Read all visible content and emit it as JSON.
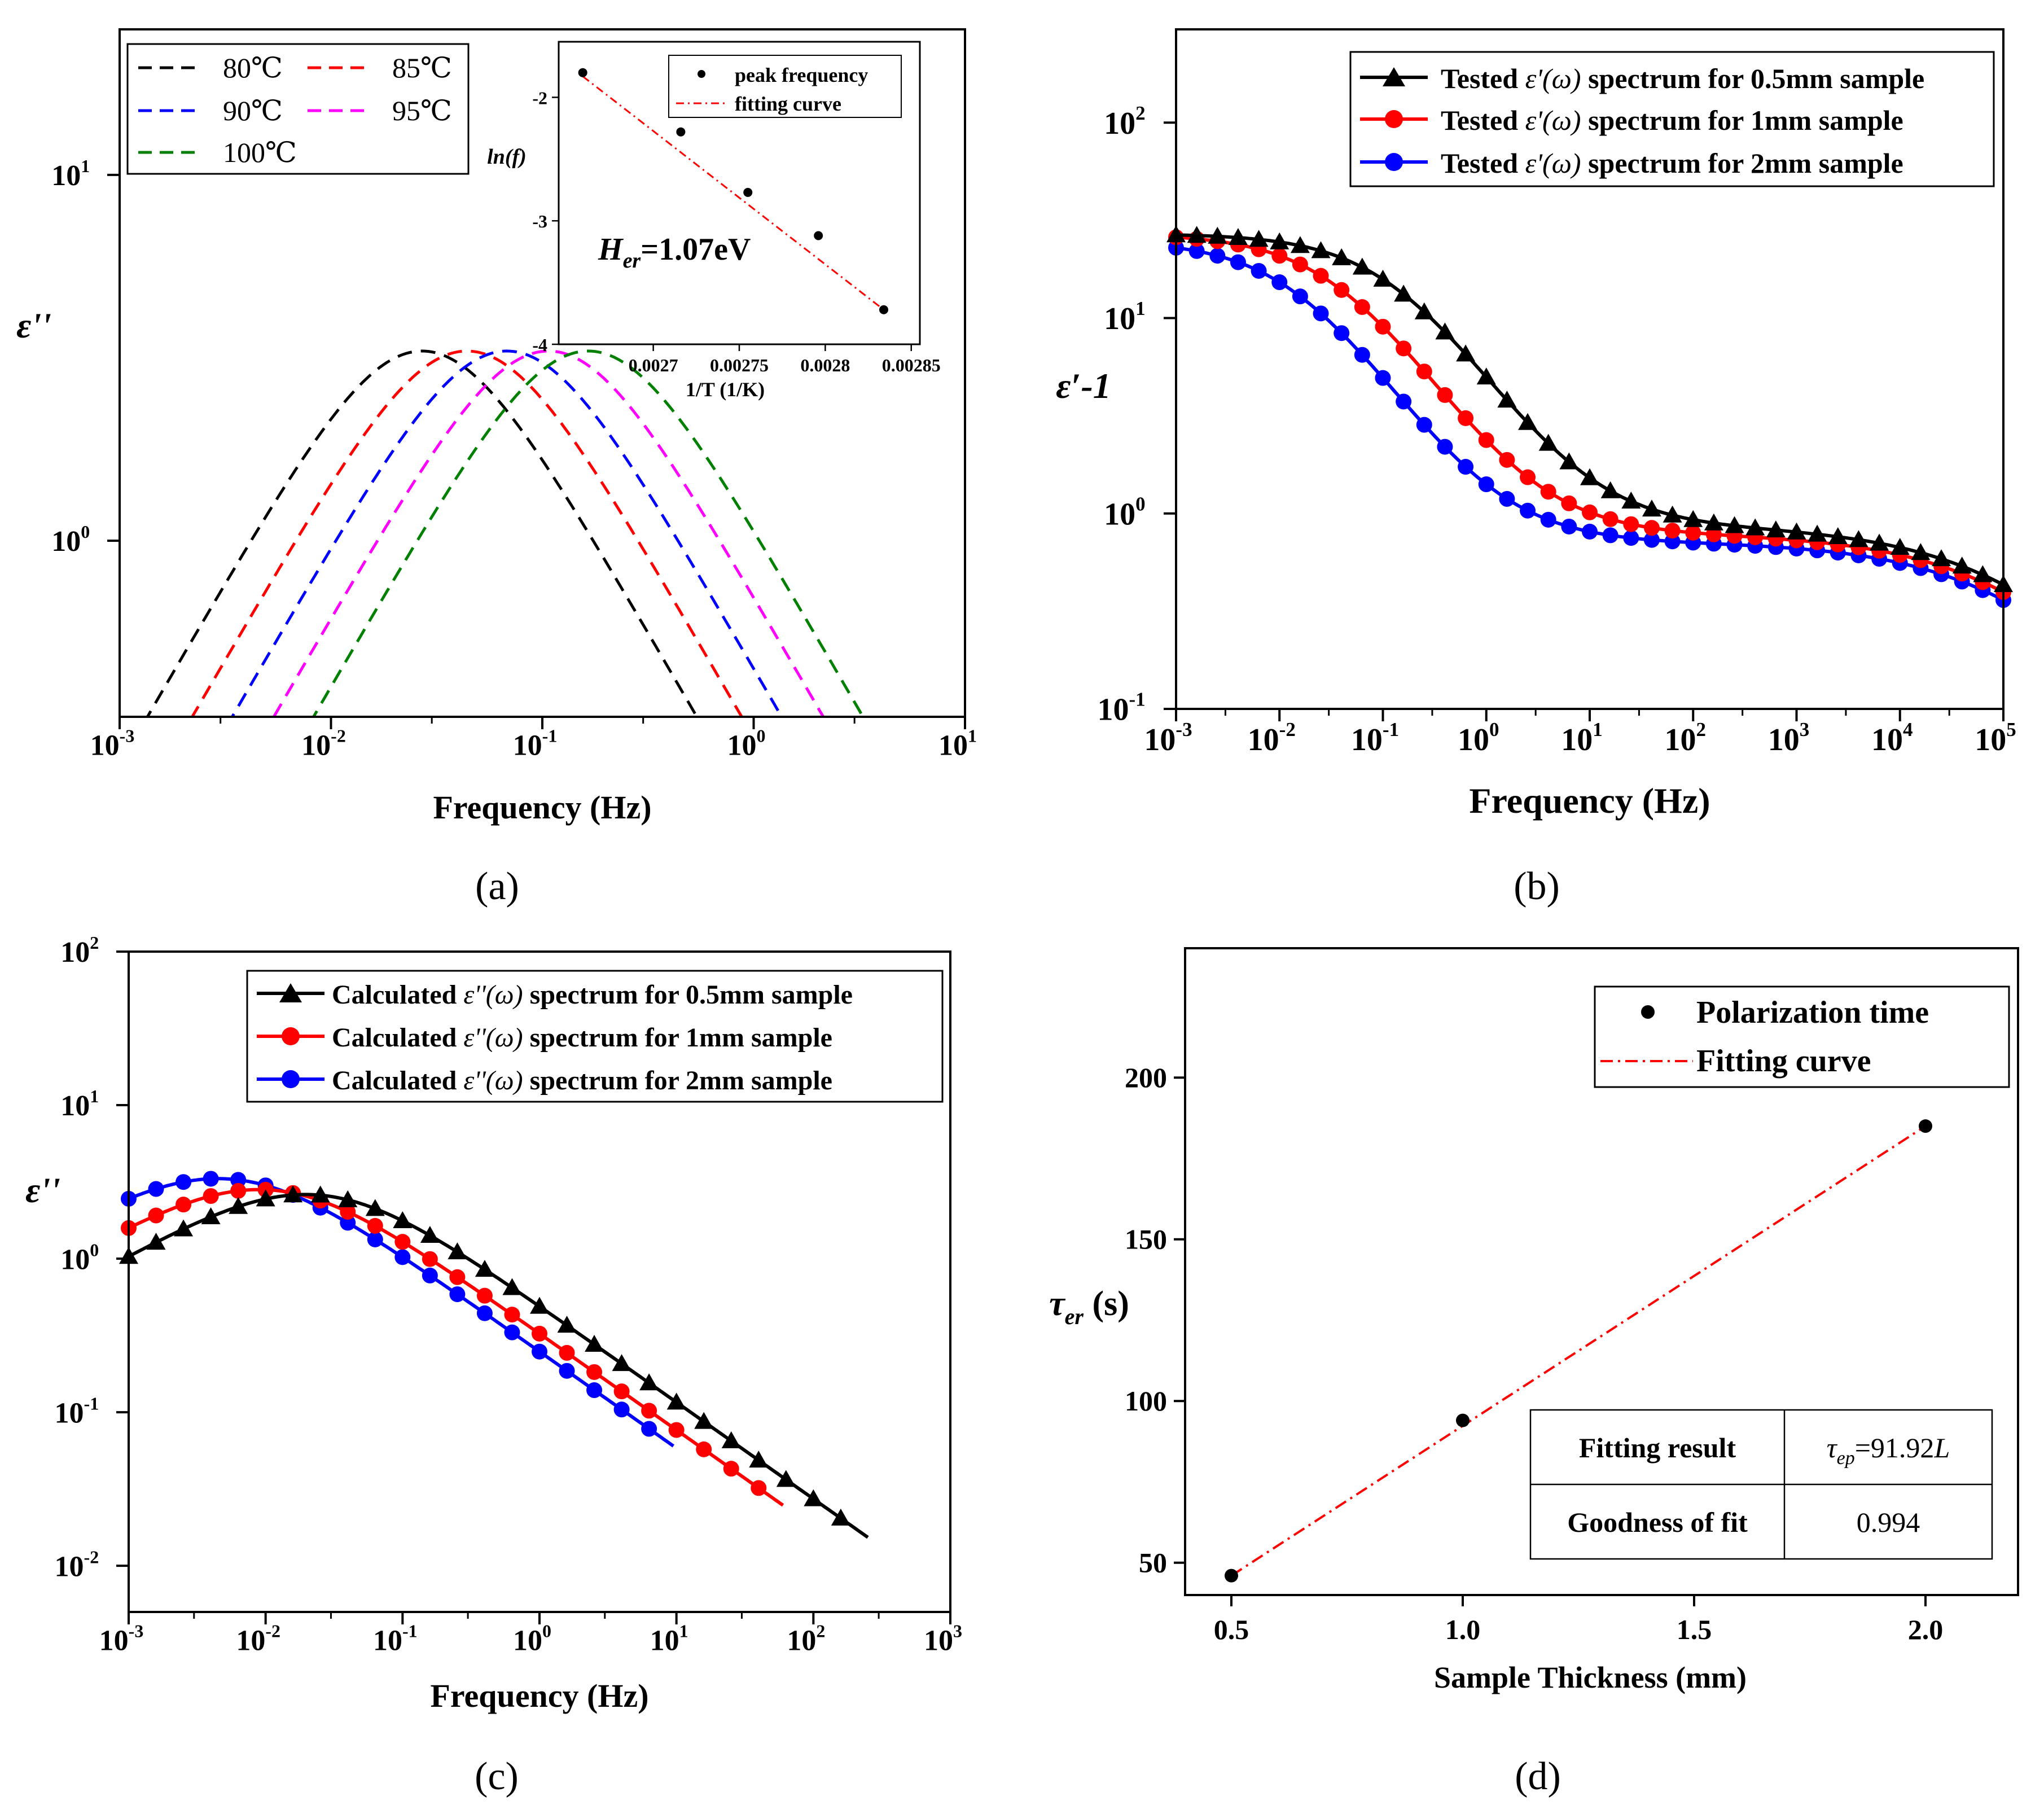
{
  "chart_data": [
    {
      "panel": "a",
      "caption": "(a)",
      "type": "line",
      "xlabel": "Frequency (Hz)",
      "ylabel": "ε''",
      "xscale": "log",
      "yscale": "log",
      "xlim": [
        0.001,
        10
      ],
      "ylim": [
        0.33,
        25
      ],
      "xticks": [
        {
          "v": 0.001,
          "b": "10",
          "e": "-3"
        },
        {
          "v": 0.01,
          "b": "10",
          "e": "-2"
        },
        {
          "v": 0.1,
          "b": "10",
          "e": "-1"
        },
        {
          "v": 1,
          "b": "10",
          "e": "0"
        },
        {
          "v": 10,
          "b": "10",
          "e": "1"
        }
      ],
      "yticks": [
        {
          "v": 1,
          "b": "10",
          "e": "0"
        },
        {
          "v": 10,
          "b": "10",
          "e": "1"
        }
      ],
      "legend": {
        "position": "top-left"
      },
      "series": [
        {
          "name": "80℃",
          "color": "#000000",
          "style": "dash",
          "peak_x": 0.027,
          "peak_y": 3.3
        },
        {
          "name": "85℃",
          "color": "#ff0000",
          "style": "dash",
          "peak_x": 0.044,
          "peak_y": 3.3
        },
        {
          "name": "90℃",
          "color": "#0000ff",
          "style": "dash",
          "peak_x": 0.068,
          "peak_y": 3.3
        },
        {
          "name": "95℃",
          "color": "#ff00ff",
          "style": "dash",
          "peak_x": 0.107,
          "peak_y": 3.3
        },
        {
          "name": "100℃",
          "color": "#008000",
          "style": "dash",
          "peak_x": 0.165,
          "peak_y": 3.3
        }
      ],
      "inset": {
        "type": "scatter",
        "xlabel": "1/T (1/K)",
        "ylabel": "ln(f)",
        "xlim": [
          0.002645,
          0.002855
        ],
        "ylim": [
          -4,
          -1.55
        ],
        "xticks": [
          "0.0027",
          "0.00275",
          "0.0028",
          "0.00285"
        ],
        "xtick_values": [
          0.0027,
          0.00275,
          0.0028,
          0.00285
        ],
        "yticks": [
          "-2",
          "-3",
          "-4"
        ],
        "ytick_values": [
          -2,
          -3,
          -4
        ],
        "points": [
          [
            0.002659,
            -1.8
          ],
          [
            0.002716,
            -2.28
          ],
          [
            0.002755,
            -2.77
          ],
          [
            0.002796,
            -3.12
          ],
          [
            0.002834,
            -3.72
          ]
        ],
        "fit": [
          [
            0.002659,
            -1.83
          ],
          [
            0.002834,
            -3.72
          ]
        ],
        "legend": [
          "peak frequency",
          "fitting curve"
        ],
        "annotation": {
          "main": "H",
          "sub": "er",
          "rest": "=1.07eV"
        }
      }
    },
    {
      "panel": "b",
      "caption": "(b)",
      "type": "line",
      "xlabel": "Frequency (Hz)",
      "ylabel": "ε′-1",
      "xscale": "log",
      "yscale": "log",
      "xlim": [
        0.001,
        100000
      ],
      "ylim": [
        0.1,
        300
      ],
      "xticks": [
        {
          "v": 0.001,
          "b": "10",
          "e": "-3"
        },
        {
          "v": 0.01,
          "b": "10",
          "e": "-2"
        },
        {
          "v": 0.1,
          "b": "10",
          "e": "-1"
        },
        {
          "v": 1,
          "b": "10",
          "e": "0"
        },
        {
          "v": 10,
          "b": "10",
          "e": "1"
        },
        {
          "v": 100,
          "b": "10",
          "e": "2"
        },
        {
          "v": 1000,
          "b": "10",
          "e": "3"
        },
        {
          "v": 10000,
          "b": "10",
          "e": "4"
        },
        {
          "v": 100000,
          "b": "10",
          "e": "5"
        }
      ],
      "yticks": [
        {
          "v": 0.1,
          "b": "10",
          "e": "-1"
        },
        {
          "v": 1,
          "b": "10",
          "e": "0"
        },
        {
          "v": 10,
          "b": "10",
          "e": "1"
        },
        {
          "v": 100,
          "b": "10",
          "e": "2"
        }
      ],
      "legend": {
        "position": "top-right"
      },
      "series": [
        {
          "name": "0.5mm",
          "legend_pre": "Tested ",
          "legend_sym": "ε'(ω)",
          "legend_post": " spectrum for 0.5mm sample",
          "color": "#000000",
          "marker": "triangle",
          "fl": -1.0,
          "hs": 27,
          "hm": 0.85,
          "t1": 0.14,
          "ar": 0.09
        },
        {
          "name": "1mm",
          "legend_pre": "Tested ",
          "legend_sym": "ε'(ω)",
          "legend_post": " spectrum for 1mm sample",
          "color": "#ff0000",
          "marker": "circle",
          "fl": -1.4,
          "hs": 27,
          "hm": 0.78,
          "t1": 0.04,
          "ar": 0.26
        },
        {
          "name": "2mm",
          "legend_pre": "Tested ",
          "legend_sym": "ε'(ω)",
          "legend_post": " spectrum for 2mm sample",
          "color": "#0000ff",
          "marker": "circle",
          "fl": -1.8,
          "hs": 25,
          "hm": 0.71,
          "t1": 0.016,
          "ar": 0.8
        }
      ]
    },
    {
      "panel": "c",
      "caption": "(c)",
      "type": "line",
      "xlabel": "Frequency (Hz)",
      "ylabel": "ε''",
      "xscale": "log",
      "yscale": "log",
      "xlim": [
        0.001,
        1000
      ],
      "ylim": [
        0.005,
        100
      ],
      "xticks": [
        {
          "v": 0.001,
          "b": "10",
          "e": "-3"
        },
        {
          "v": 0.01,
          "b": "10",
          "e": "-2"
        },
        {
          "v": 0.1,
          "b": "10",
          "e": "-1"
        },
        {
          "v": 1,
          "b": "10",
          "e": "0"
        },
        {
          "v": 10,
          "b": "10",
          "e": "1"
        },
        {
          "v": 100,
          "b": "10",
          "e": "2"
        },
        {
          "v": 1000,
          "b": "10",
          "e": "3"
        }
      ],
      "yticks": [
        {
          "v": 0.01,
          "b": "10",
          "e": "-2"
        },
        {
          "v": 0.1,
          "b": "10",
          "e": "-1"
        },
        {
          "v": 1,
          "b": "10",
          "e": "0"
        },
        {
          "v": 10,
          "b": "10",
          "e": "1"
        },
        {
          "v": 100,
          "b": "10",
          "e": "2"
        }
      ],
      "legend": {
        "position": "top-right"
      },
      "series": [
        {
          "name": "0.5mm",
          "legend_pre": "Calculated ",
          "legend_sym": "ε''(ω)",
          "legend_post": " spectrum for 0.5mm sample",
          "color": "#000000",
          "marker": "triangle",
          "fl": -0.4,
          "peak_x": 0.024,
          "peak_y": 2.6,
          "k": 0.63,
          "fmax": 250
        },
        {
          "name": "1mm",
          "legend_pre": "Calculated ",
          "legend_sym": "ε''(ω)",
          "legend_post": " spectrum for 1mm sample",
          "color": "#ff0000",
          "marker": "circle",
          "fl": -0.85,
          "peak_x": 0.011,
          "peak_y": 2.8,
          "k": 0.63,
          "fmax": 60
        },
        {
          "name": "2mm",
          "legend_pre": "Calculated ",
          "legend_sym": "ε''(ω)",
          "legend_post": " spectrum for 2mm sample",
          "color": "#0000ff",
          "marker": "circle",
          "fl": -1.1,
          "peak_x": 0.0055,
          "peak_y": 3.3,
          "k": 0.63,
          "fmax": 9.5
        }
      ]
    },
    {
      "panel": "d",
      "caption": "(d)",
      "type": "scatter",
      "xlabel": "Sample Thickness (mm)",
      "ylabel_main": "τ",
      "ylabel_sub": "er",
      "ylabel_rest": " (s)",
      "xlim": [
        0.4,
        2.2
      ],
      "ylim": [
        40,
        240
      ],
      "xticks": [
        "0.5",
        "1.0",
        "1.5",
        "2.0"
      ],
      "xtick_values": [
        0.5,
        1.0,
        1.5,
        2.0
      ],
      "yticks": [
        "50",
        "100",
        "150",
        "200"
      ],
      "ytick_values": [
        50,
        100,
        150,
        200
      ],
      "points": [
        [
          0.5,
          46
        ],
        [
          1.0,
          94
        ],
        [
          2.0,
          185
        ]
      ],
      "fit": [
        [
          0.5,
          46
        ],
        [
          2.0,
          185
        ]
      ],
      "legend": [
        "Polarization time",
        "Fitting curve"
      ],
      "table": {
        "row1_label": "Fitting result",
        "row1_main": "τ",
        "row1_sub": "ep",
        "row1_rest": "=91.92",
        "row1_unit": "L",
        "row2_label": "Goodness of fit",
        "row2_value": "0.994"
      }
    }
  ]
}
